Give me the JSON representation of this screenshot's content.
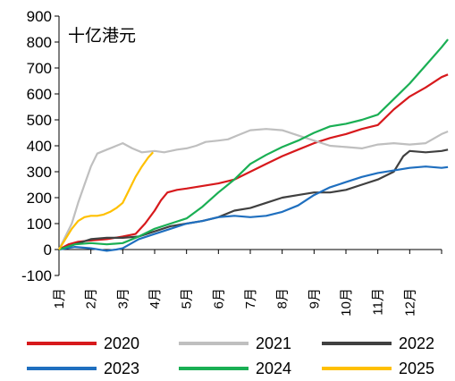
{
  "chart_data": {
    "type": "line",
    "unit_label": "十亿港元",
    "ylim": [
      -100,
      900
    ],
    "yticks": [
      -100,
      0,
      100,
      200,
      300,
      400,
      500,
      600,
      700,
      800,
      900
    ],
    "xlim": [
      0,
      12
    ],
    "month_labels": [
      "1月",
      "2月",
      "3月",
      "4月",
      "5月",
      "6月",
      "7月",
      "8月",
      "9月",
      "10月",
      "11月",
      "12月"
    ],
    "grid": false,
    "legend_position": "bottom",
    "series": [
      {
        "name": "2020",
        "color": "#D7191C",
        "points": [
          [
            0,
            0
          ],
          [
            0.3,
            20
          ],
          [
            0.6,
            30
          ],
          [
            1.0,
            35
          ],
          [
            1.5,
            40
          ],
          [
            2.0,
            50
          ],
          [
            2.4,
            60
          ],
          [
            2.7,
            100
          ],
          [
            3.0,
            150
          ],
          [
            3.2,
            190
          ],
          [
            3.4,
            220
          ],
          [
            3.7,
            230
          ],
          [
            4.0,
            235
          ],
          [
            4.5,
            245
          ],
          [
            5.0,
            255
          ],
          [
            5.5,
            270
          ],
          [
            6.0,
            300
          ],
          [
            6.5,
            330
          ],
          [
            7.0,
            360
          ],
          [
            7.5,
            385
          ],
          [
            8.0,
            410
          ],
          [
            8.5,
            430
          ],
          [
            9.0,
            445
          ],
          [
            9.5,
            465
          ],
          [
            10.0,
            480
          ],
          [
            10.5,
            540
          ],
          [
            11.0,
            590
          ],
          [
            11.5,
            625
          ],
          [
            12.0,
            665
          ],
          [
            12.2,
            675
          ]
        ]
      },
      {
        "name": "2021",
        "color": "#BFBFBF",
        "points": [
          [
            0,
            0
          ],
          [
            0.2,
            50
          ],
          [
            0.4,
            100
          ],
          [
            0.6,
            180
          ],
          [
            0.8,
            250
          ],
          [
            1.0,
            320
          ],
          [
            1.2,
            370
          ],
          [
            1.5,
            385
          ],
          [
            1.8,
            400
          ],
          [
            2.0,
            410
          ],
          [
            2.3,
            390
          ],
          [
            2.6,
            375
          ],
          [
            3.0,
            380
          ],
          [
            3.3,
            375
          ],
          [
            3.7,
            385
          ],
          [
            4.0,
            390
          ],
          [
            4.3,
            400
          ],
          [
            4.6,
            415
          ],
          [
            5.0,
            420
          ],
          [
            5.3,
            425
          ],
          [
            5.6,
            440
          ],
          [
            6.0,
            460
          ],
          [
            6.5,
            465
          ],
          [
            7.0,
            460
          ],
          [
            7.5,
            440
          ],
          [
            8.0,
            420
          ],
          [
            8.5,
            400
          ],
          [
            9.0,
            395
          ],
          [
            9.5,
            390
          ],
          [
            10.0,
            405
          ],
          [
            10.5,
            410
          ],
          [
            11.0,
            405
          ],
          [
            11.5,
            410
          ],
          [
            12.0,
            445
          ],
          [
            12.2,
            455
          ]
        ]
      },
      {
        "name": "2022",
        "color": "#404040",
        "points": [
          [
            0,
            0
          ],
          [
            0.5,
            20
          ],
          [
            1.0,
            40
          ],
          [
            1.5,
            45
          ],
          [
            2.0,
            45
          ],
          [
            2.5,
            50
          ],
          [
            3.0,
            70
          ],
          [
            3.5,
            90
          ],
          [
            4.0,
            100
          ],
          [
            4.5,
            110
          ],
          [
            5.0,
            125
          ],
          [
            5.5,
            150
          ],
          [
            6.0,
            160
          ],
          [
            6.5,
            180
          ],
          [
            7.0,
            200
          ],
          [
            7.5,
            210
          ],
          [
            8.0,
            220
          ],
          [
            8.5,
            220
          ],
          [
            9.0,
            230
          ],
          [
            9.5,
            250
          ],
          [
            10.0,
            270
          ],
          [
            10.5,
            300
          ],
          [
            10.8,
            360
          ],
          [
            11.0,
            380
          ],
          [
            11.5,
            375
          ],
          [
            12.0,
            380
          ],
          [
            12.2,
            385
          ]
        ]
      },
      {
        "name": "2023",
        "color": "#1F6FBF",
        "points": [
          [
            0,
            0
          ],
          [
            0.5,
            10
          ],
          [
            1.0,
            5
          ],
          [
            1.5,
            -5
          ],
          [
            1.8,
            0
          ],
          [
            2.0,
            5
          ],
          [
            2.5,
            40
          ],
          [
            3.0,
            60
          ],
          [
            3.5,
            80
          ],
          [
            4.0,
            100
          ],
          [
            4.5,
            110
          ],
          [
            5.0,
            125
          ],
          [
            5.5,
            130
          ],
          [
            6.0,
            125
          ],
          [
            6.5,
            130
          ],
          [
            7.0,
            145
          ],
          [
            7.5,
            170
          ],
          [
            8.0,
            210
          ],
          [
            8.5,
            240
          ],
          [
            9.0,
            260
          ],
          [
            9.5,
            280
          ],
          [
            10.0,
            295
          ],
          [
            10.5,
            305
          ],
          [
            11.0,
            315
          ],
          [
            11.5,
            320
          ],
          [
            12.0,
            315
          ],
          [
            12.2,
            318
          ]
        ]
      },
      {
        "name": "2024",
        "color": "#1AAF54",
        "points": [
          [
            0,
            0
          ],
          [
            0.5,
            20
          ],
          [
            1.0,
            25
          ],
          [
            1.5,
            20
          ],
          [
            2.0,
            25
          ],
          [
            2.5,
            50
          ],
          [
            3.0,
            80
          ],
          [
            3.5,
            100
          ],
          [
            4.0,
            120
          ],
          [
            4.5,
            165
          ],
          [
            5.0,
            220
          ],
          [
            5.5,
            270
          ],
          [
            6.0,
            330
          ],
          [
            6.5,
            365
          ],
          [
            7.0,
            395
          ],
          [
            7.5,
            420
          ],
          [
            8.0,
            450
          ],
          [
            8.5,
            475
          ],
          [
            9.0,
            485
          ],
          [
            9.5,
            500
          ],
          [
            10.0,
            520
          ],
          [
            10.5,
            580
          ],
          [
            11.0,
            640
          ],
          [
            11.5,
            710
          ],
          [
            12.0,
            780
          ],
          [
            12.2,
            810
          ]
        ]
      },
      {
        "name": "2025",
        "color": "#FFC000",
        "points": [
          [
            0,
            0
          ],
          [
            0.2,
            40
          ],
          [
            0.4,
            80
          ],
          [
            0.6,
            110
          ],
          [
            0.8,
            125
          ],
          [
            1.0,
            130
          ],
          [
            1.2,
            130
          ],
          [
            1.4,
            135
          ],
          [
            1.6,
            145
          ],
          [
            1.8,
            160
          ],
          [
            2.0,
            180
          ],
          [
            2.2,
            230
          ],
          [
            2.4,
            280
          ],
          [
            2.6,
            320
          ],
          [
            2.8,
            355
          ],
          [
            2.95,
            375
          ]
        ]
      }
    ]
  }
}
